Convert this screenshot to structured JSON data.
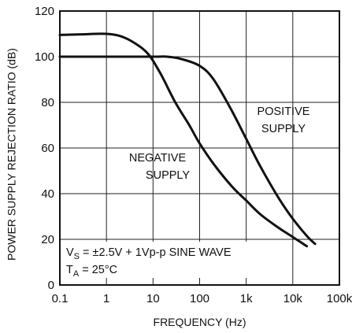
{
  "chart_data": {
    "type": "line",
    "title": "",
    "xlabel": "FREQUENCY (Hz)",
    "ylabel": "POWER SUPPLY REJECTION RATIO (dB)",
    "xscale": "log",
    "xlim": [
      0.1,
      100000
    ],
    "ylim": [
      0,
      120
    ],
    "grid": true,
    "x_ticks": [
      {
        "value": 0.1,
        "label": "0.1"
      },
      {
        "value": 1,
        "label": "1"
      },
      {
        "value": 10,
        "label": "10"
      },
      {
        "value": 100,
        "label": "100"
      },
      {
        "value": 1000,
        "label": "1k"
      },
      {
        "value": 10000,
        "label": "10k"
      },
      {
        "value": 100000,
        "label": "100k"
      }
    ],
    "y_ticks": [
      {
        "value": 0,
        "label": "0"
      },
      {
        "value": 20,
        "label": "20"
      },
      {
        "value": 40,
        "label": "40"
      },
      {
        "value": 60,
        "label": "60"
      },
      {
        "value": 80,
        "label": "80"
      },
      {
        "value": 100,
        "label": "100"
      },
      {
        "value": 120,
        "label": "120"
      }
    ],
    "series": [
      {
        "name": "POSITIVE SUPPLY",
        "x": [
          0.1,
          1,
          10,
          20,
          40,
          100,
          200,
          500,
          1000,
          2000,
          5000,
          10000,
          20000,
          30000
        ],
        "y": [
          100,
          100,
          100,
          100,
          99,
          96,
          90,
          76,
          64,
          52,
          38,
          29,
          21.5,
          18
        ]
      },
      {
        "name": "NEGATIVE SUPPLY",
        "x": [
          0.1,
          0.3,
          1,
          2,
          4,
          8,
          15,
          30,
          60,
          100,
          200,
          500,
          1000,
          2000,
          5000,
          10000,
          20000
        ],
        "y": [
          109.5,
          109.8,
          110,
          109,
          106,
          101,
          92,
          80,
          70,
          62,
          53,
          43,
          37,
          31,
          25,
          21,
          17
        ]
      }
    ],
    "annotations": {
      "positive_line1": "POSITIVE",
      "positive_line2": "SUPPLY",
      "negative_line1": "NEGATIVE",
      "negative_line2": "SUPPLY"
    },
    "conditions": {
      "vs_symbol": "V",
      "vs_sub": "S",
      "vs_rest": " = ±2.5V + 1Vp-p SINE WAVE",
      "ta_symbol": "T",
      "ta_sub": "A",
      "ta_rest": " = 25°C"
    }
  }
}
